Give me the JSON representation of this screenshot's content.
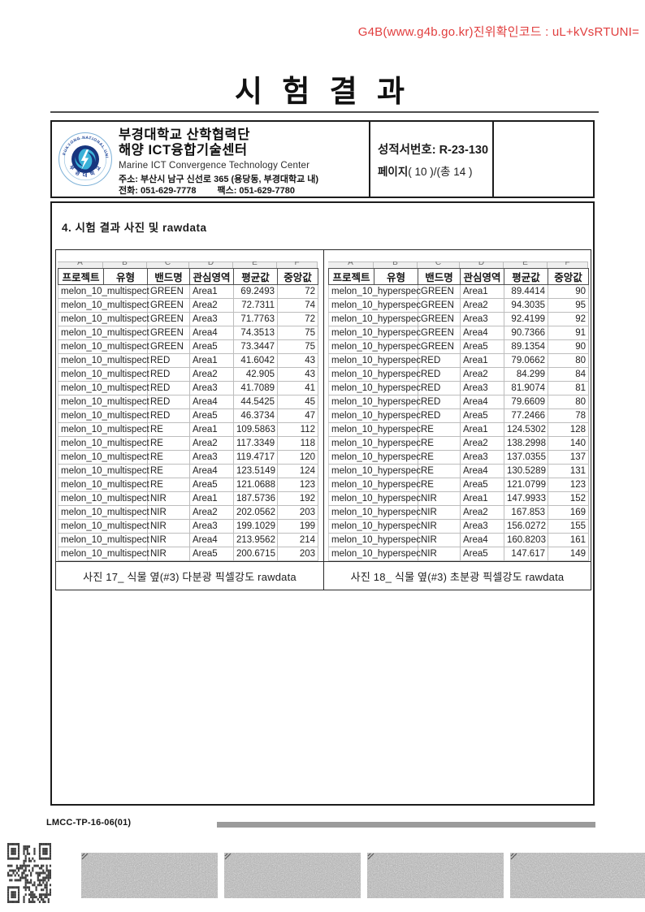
{
  "verification_text": "G4B(www.g4b.go.kr)진위확인코드 : uL+kVsRTUNI=",
  "title": "시 험 결 과",
  "header": {
    "org_line1": "부경대학교 산학협력단",
    "org_line2": "해양 ICT융합기술센터",
    "org_en": "Marine ICT Convergence Technology Center",
    "address": "주소: 부산시 남구 신선로 365 (용당동, 부경대학교 내)",
    "phone": "전화: 051-629-7778",
    "fax": "팩스:  051-629-7780",
    "report_no_label": "성적서번호:",
    "report_no": "R-23-130",
    "page_label": "페이지",
    "page_value": "( 10 )/(총 14 )",
    "logo": {
      "top_text": "PUKYONG NATIONAL UNIVERSITY",
      "bottom_text": "부 경 대 학 교"
    }
  },
  "section_title": "4. 시험 결과 사진 및 rawdata",
  "colors": {
    "verification_red": "#e13e3e",
    "grid_line": "#bdbdbd",
    "logo_blue_dark": "#17357e",
    "logo_blue_light": "#3ab1d8"
  },
  "tables": [
    {
      "column_letters": [
        "A",
        "B",
        "C",
        "D",
        "E",
        "F"
      ],
      "columns": [
        "프로젝트",
        "유형",
        "밴드명",
        "관심영역",
        "평균값",
        "중앙값"
      ],
      "caption": "사진 17_ 식물 옆(#3) 다분광 픽셀강도 rawdata",
      "rows": [
        [
          "melon_10_multispect",
          "GREEN",
          "Area1",
          "69.2493",
          "72"
        ],
        [
          "melon_10_multispect",
          "GREEN",
          "Area2",
          "72.7311",
          "74"
        ],
        [
          "melon_10_multispect",
          "GREEN",
          "Area3",
          "71.7763",
          "72"
        ],
        [
          "melon_10_multispect",
          "GREEN",
          "Area4",
          "74.3513",
          "75"
        ],
        [
          "melon_10_multispect",
          "GREEN",
          "Area5",
          "73.3447",
          "75"
        ],
        [
          "melon_10_multispect",
          "RED",
          "Area1",
          "41.6042",
          "43"
        ],
        [
          "melon_10_multispect",
          "RED",
          "Area2",
          "42.905",
          "43"
        ],
        [
          "melon_10_multispect",
          "RED",
          "Area3",
          "41.7089",
          "41"
        ],
        [
          "melon_10_multispect",
          "RED",
          "Area4",
          "44.5425",
          "45"
        ],
        [
          "melon_10_multispect",
          "RED",
          "Area5",
          "46.3734",
          "47"
        ],
        [
          "melon_10_multispect",
          "RE",
          "Area1",
          "109.5863",
          "112"
        ],
        [
          "melon_10_multispect",
          "RE",
          "Area2",
          "117.3349",
          "118"
        ],
        [
          "melon_10_multispect",
          "RE",
          "Area3",
          "119.4717",
          "120"
        ],
        [
          "melon_10_multispect",
          "RE",
          "Area4",
          "123.5149",
          "124"
        ],
        [
          "melon_10_multispect",
          "RE",
          "Area5",
          "121.0688",
          "123"
        ],
        [
          "melon_10_multispect",
          "NIR",
          "Area1",
          "187.5736",
          "192"
        ],
        [
          "melon_10_multispect",
          "NIR",
          "Area2",
          "202.0562",
          "203"
        ],
        [
          "melon_10_multispect",
          "NIR",
          "Area3",
          "199.1029",
          "199"
        ],
        [
          "melon_10_multispect",
          "NIR",
          "Area4",
          "213.9562",
          "214"
        ],
        [
          "melon_10_multispect",
          "NIR",
          "Area5",
          "200.6715",
          "203"
        ]
      ]
    },
    {
      "column_letters": [
        "A",
        "B",
        "C",
        "D",
        "E",
        "F"
      ],
      "columns": [
        "프로젝트",
        "유형",
        "밴드명",
        "관심영역",
        "평균값",
        "중앙값"
      ],
      "caption": "사진 18_ 식물 옆(#3) 초분광 픽셀강도 rawdata",
      "rows": [
        [
          "melon_10_hyperspec",
          "GREEN",
          "Area1",
          "89.4414",
          "90"
        ],
        [
          "melon_10_hyperspec",
          "GREEN",
          "Area2",
          "94.3035",
          "95"
        ],
        [
          "melon_10_hyperspec",
          "GREEN",
          "Area3",
          "92.4199",
          "92"
        ],
        [
          "melon_10_hyperspec",
          "GREEN",
          "Area4",
          "90.7366",
          "91"
        ],
        [
          "melon_10_hyperspec",
          "GREEN",
          "Area5",
          "89.1354",
          "90"
        ],
        [
          "melon_10_hyperspec",
          "RED",
          "Area1",
          "79.0662",
          "80"
        ],
        [
          "melon_10_hyperspec",
          "RED",
          "Area2",
          "84.299",
          "84"
        ],
        [
          "melon_10_hyperspec",
          "RED",
          "Area3",
          "81.9074",
          "81"
        ],
        [
          "melon_10_hyperspec",
          "RED",
          "Area4",
          "79.6609",
          "80"
        ],
        [
          "melon_10_hyperspec",
          "RED",
          "Area5",
          "77.2466",
          "78"
        ],
        [
          "melon_10_hyperspec",
          "RE",
          "Area1",
          "124.5302",
          "128"
        ],
        [
          "melon_10_hyperspec",
          "RE",
          "Area2",
          "138.2998",
          "140"
        ],
        [
          "melon_10_hyperspec",
          "RE",
          "Area3",
          "137.0355",
          "137"
        ],
        [
          "melon_10_hyperspec",
          "RE",
          "Area4",
          "130.5289",
          "131"
        ],
        [
          "melon_10_hyperspec",
          "RE",
          "Area5",
          "121.0799",
          "123"
        ],
        [
          "melon_10_hyperspec",
          "NIR",
          "Area1",
          "147.9933",
          "152"
        ],
        [
          "melon_10_hyperspec",
          "NIR",
          "Area2",
          "167.853",
          "169"
        ],
        [
          "melon_10_hyperspec",
          "NIR",
          "Area3",
          "156.0272",
          "155"
        ],
        [
          "melon_10_hyperspec",
          "NIR",
          "Area4",
          "160.8203",
          "161"
        ],
        [
          "melon_10_hyperspec",
          "NIR",
          "Area5",
          "147.617",
          "149"
        ]
      ]
    }
  ],
  "footer": {
    "doc_code": "LMCC-TP-16-06(01)"
  }
}
